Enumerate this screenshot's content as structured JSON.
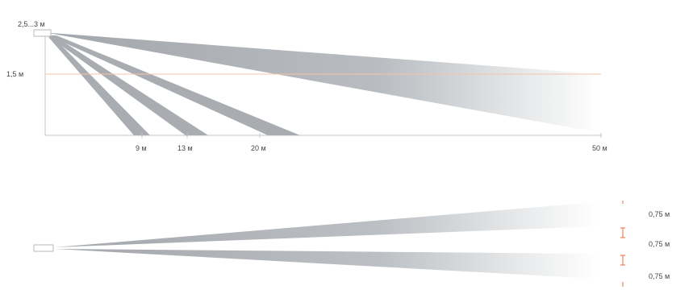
{
  "side_view": {
    "height_label": "2,5...3 м",
    "level_label": "1,5 м",
    "distance_labels": [
      "9 м",
      "13 м",
      "20 м",
      "50 м"
    ]
  },
  "top_view": {
    "spacing_labels": [
      "0,75 м",
      "0,75 м",
      "0,75 м"
    ]
  },
  "colors": {
    "beam": "#a9adb2",
    "axis": "#bcbcbc",
    "level_line": "#f3c5ad",
    "marker": "#f26a3a"
  },
  "icons": {
    "sensor": "sensor-box-icon"
  }
}
